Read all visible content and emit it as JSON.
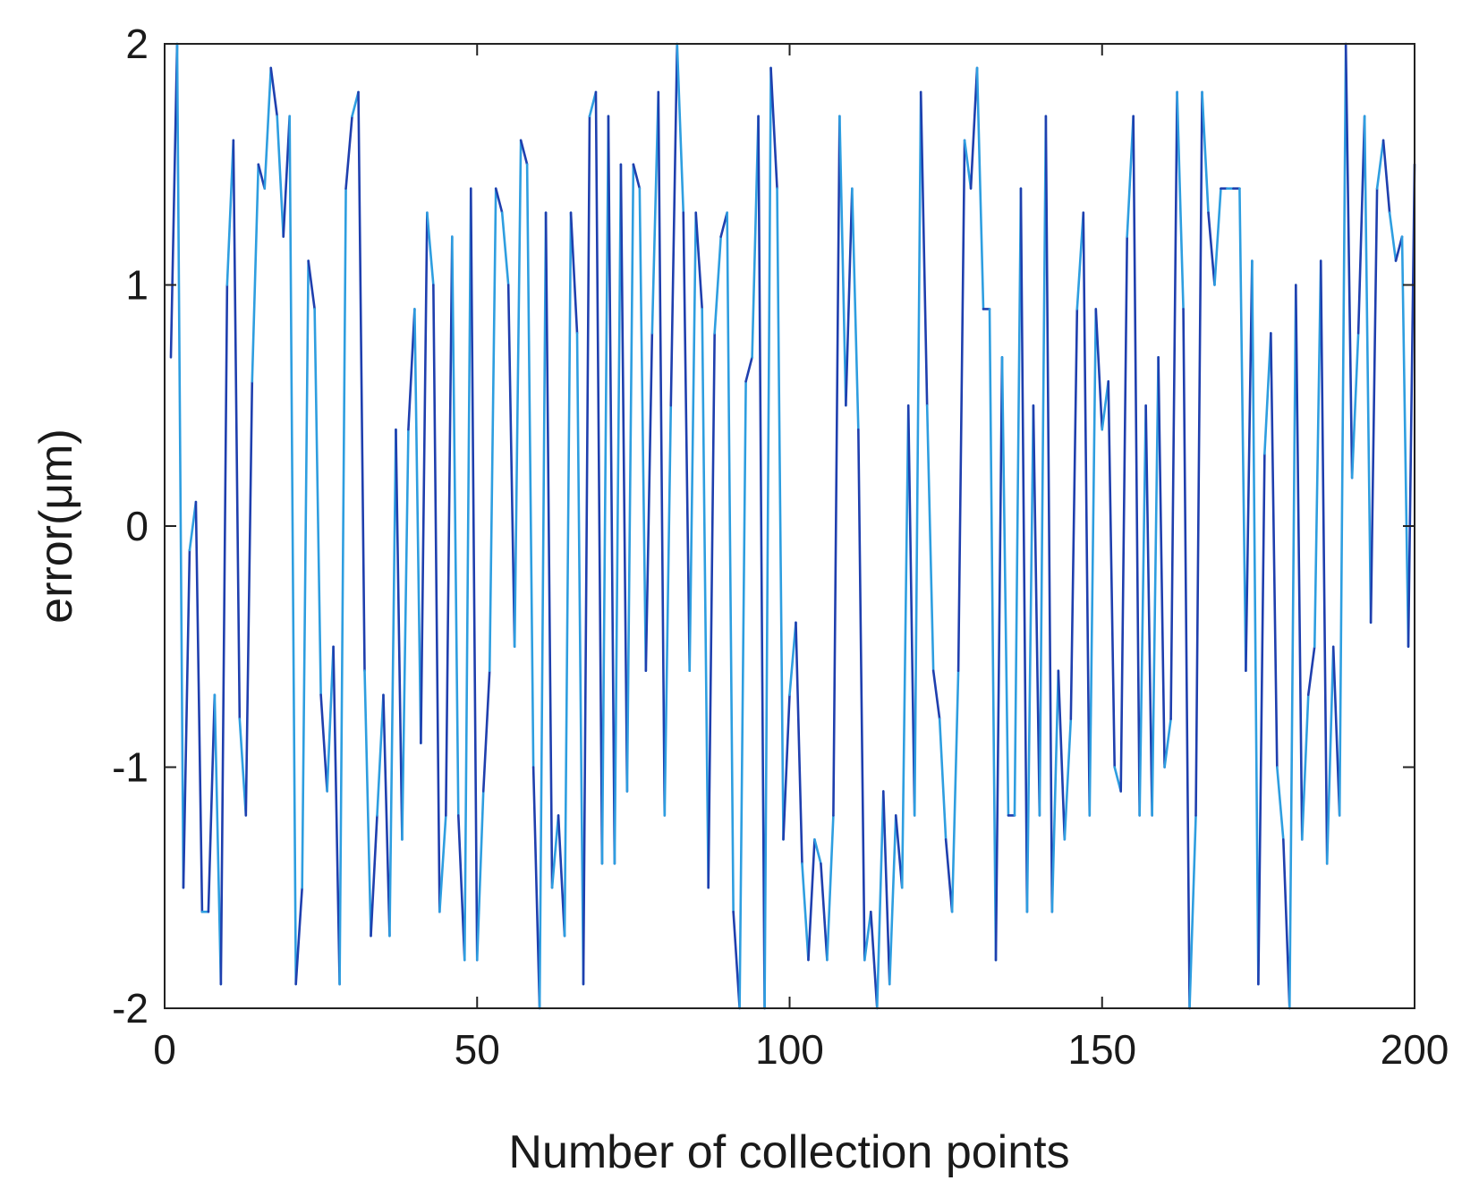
{
  "chart_data": {
    "type": "line",
    "xlabel": "Number of collection points",
    "ylabel": "error(μm)",
    "xlim": [
      0,
      200
    ],
    "ylim": [
      -2,
      2
    ],
    "xticks": [
      0,
      50,
      100,
      150,
      200
    ],
    "yticks": [
      2,
      1,
      0,
      -1,
      -2
    ],
    "xtick_labels": [
      "0",
      "50",
      "100",
      "150",
      "200"
    ],
    "ytick_labels": [
      "2",
      "1",
      "0",
      "-1",
      "-2"
    ],
    "grid": false,
    "colors": {
      "dark_blue": "#1f3fae",
      "light_blue": "#2e9ee0"
    },
    "series": [
      {
        "x": [
          1,
          2,
          3,
          4,
          5,
          6,
          7,
          8,
          9,
          10,
          11,
          12,
          13,
          14,
          15,
          16,
          17,
          18,
          19,
          20,
          21,
          22,
          23,
          24,
          25,
          26,
          27,
          28,
          29,
          30,
          31,
          32,
          33,
          34,
          35,
          36,
          37,
          38,
          39,
          40,
          41,
          42,
          43,
          44,
          45,
          46,
          47,
          48,
          49,
          50,
          51,
          52,
          53,
          54,
          55,
          56,
          57,
          58,
          59,
          60,
          61,
          62,
          63,
          64,
          65,
          66,
          67,
          68,
          69,
          70,
          71,
          72,
          73,
          74,
          75,
          76,
          77,
          78,
          79,
          80,
          81,
          82,
          83,
          84,
          85,
          86,
          87,
          88,
          89,
          90,
          91,
          92,
          93,
          94,
          95,
          96,
          97,
          98,
          99,
          100,
          101,
          102,
          103,
          104,
          105,
          106,
          107,
          108,
          109,
          110,
          111,
          112,
          113,
          114,
          115,
          116,
          117,
          118,
          119,
          120,
          121,
          122,
          123,
          124,
          125,
          126,
          127,
          128,
          129,
          130,
          131,
          132,
          133,
          134,
          135,
          136,
          137,
          138,
          139,
          140,
          141,
          142,
          143,
          144,
          145,
          146,
          147,
          148,
          149,
          150,
          151,
          152,
          153,
          154,
          155,
          156,
          157,
          158,
          159,
          160,
          161,
          162,
          163,
          164,
          165,
          166,
          167,
          168,
          169,
          170,
          171,
          172,
          173,
          174,
          175,
          176,
          177,
          178,
          179,
          180,
          181,
          182,
          183,
          184,
          185,
          186,
          187,
          188,
          189,
          190,
          191,
          192,
          193,
          194,
          195,
          196,
          197,
          198,
          199,
          200
        ],
        "y": [
          0.7,
          2,
          -1.5,
          -0.1,
          0.1,
          -1.6,
          -1.6,
          -0.7,
          -1.9,
          1,
          1.6,
          -0.8,
          -1.2,
          0.6,
          1.5,
          1.4,
          1.9,
          1.7,
          1.2,
          1.7,
          -1.9,
          -1.5,
          1.1,
          0.9,
          -0.7,
          -1.1,
          -0.5,
          -1.9,
          1.4,
          1.7,
          1.8,
          -0.6,
          -1.7,
          -1.2,
          -0.7,
          -1.7,
          0.4,
          -1.3,
          0.4,
          0.9,
          -0.9,
          1.3,
          1.0,
          -1.6,
          -1.2,
          1.2,
          -1.2,
          -1.8,
          1.4,
          -1.8,
          -1.1,
          -0.6,
          1.4,
          1.3,
          1.0,
          -0.5,
          1.6,
          1.5,
          -1.0,
          -2,
          1.3,
          -1.5,
          -1.2,
          -1.7,
          1.3,
          0.8,
          -1.9,
          1.7,
          1.8,
          -1.4,
          1.7,
          -1.4,
          1.5,
          -1.1,
          1.5,
          1.4,
          -0.6,
          0.8,
          1.8,
          -1.2,
          0.5,
          2,
          1.3,
          -0.6,
          1.3,
          0.9,
          -1.5,
          0.8,
          1.2,
          1.3,
          -1.6,
          -2,
          0.6,
          0.7,
          1.7,
          -2,
          1.9,
          1.4,
          -1.3,
          -0.7,
          -0.4,
          -1.4,
          -1.8,
          -1.3,
          -1.4,
          -1.8,
          -1.2,
          1.7,
          0.5,
          1.4,
          0.4,
          -1.8,
          -1.6,
          -2,
          -1.1,
          -1.9,
          -1.2,
          -1.5,
          0.5,
          -1.2,
          1.8,
          0.5,
          -0.6,
          -0.8,
          -1.3,
          -1.6,
          -0.6,
          1.6,
          1.4,
          1.9,
          0.9,
          0.9,
          -1.8,
          0.7,
          -1.2,
          -1.2,
          1.4,
          -1.6,
          0.5,
          -1.2,
          1.7,
          -1.6,
          -0.6,
          -1.3,
          -0.8,
          0.9,
          1.3,
          -1.2,
          0.9,
          0.4,
          0.6,
          -1.0,
          -1.1,
          1.2,
          1.7,
          -1.2,
          0.5,
          -1.2,
          0.7,
          -1.0,
          -0.8,
          1.8,
          0.9,
          -2,
          -1.2,
          1.8,
          1.3,
          1.0,
          1.4,
          1.4,
          1.4,
          1.4,
          -0.6,
          1.1,
          -1.9,
          0.3,
          0.8,
          -1.0,
          -1.3,
          -2,
          1.0,
          -1.3,
          -0.7,
          -0.5,
          1.1,
          -1.4,
          -0.5,
          -1.2,
          2,
          0.2,
          0.8,
          1.7,
          -0.4,
          1.4,
          1.6,
          1.3,
          1.1,
          1.2,
          -0.5,
          1.5
        ]
      }
    ]
  }
}
